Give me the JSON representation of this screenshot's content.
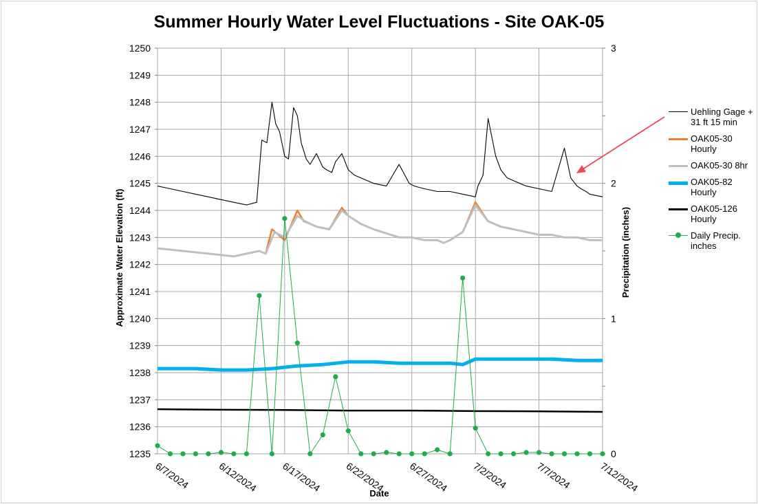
{
  "chart_data": {
    "type": "line",
    "title": "Summer Hourly Water Level Fluctuations - Site OAK-05",
    "xlabel": "Date",
    "ylabel": "Approximate  Water  Elevation (ft)",
    "y2label": "Precipitation (inches)",
    "xlim": [
      0,
      35
    ],
    "ylim": [
      1235,
      1250
    ],
    "y2lim": [
      0,
      3
    ],
    "x_tick_labels": [
      "6/7/2024",
      "6/12/2024",
      "6/17/2024",
      "6/22/2024",
      "6/27/2024",
      "7/2/2024",
      "7/7/2024",
      "7/12/2024"
    ],
    "y_ticks": [
      1235,
      1236,
      1237,
      1238,
      1239,
      1240,
      1241,
      1242,
      1243,
      1244,
      1245,
      1246,
      1247,
      1248,
      1249,
      1250
    ],
    "y2_ticks": [
      0,
      1,
      2,
      3
    ],
    "grid": true,
    "legend_position": "right",
    "colors": {
      "uehling": "#000000",
      "oak05_30_hourly": "#ed7d31",
      "oak05_30_8hr": "#bfbfbf",
      "oak05_82": "#00b0f0",
      "oak05_126": "#000000",
      "precip": "#1fad4b",
      "arrow": "#e8485a"
    },
    "series": [
      {
        "name": "Uehling Gage + 31 ft 15 min",
        "axis": "left",
        "x": [
          0,
          1,
          2,
          3,
          4,
          5,
          6,
          7,
          7.8,
          8.2,
          8.6,
          9.0,
          9.3,
          9.6,
          10.0,
          10.3,
          10.7,
          11.0,
          11.3,
          11.7,
          12.0,
          12.5,
          13.0,
          13.3,
          13.7,
          14.0,
          14.5,
          15.0,
          15.5,
          16.0,
          16.5,
          17.0,
          18,
          19,
          19.8,
          20.2,
          20.6,
          21,
          22,
          23,
          24,
          25,
          25.2,
          25.6,
          26,
          26.6,
          27,
          27.5,
          28,
          28.5,
          29,
          30,
          31,
          32,
          32.5,
          33,
          33.3,
          33.7,
          34,
          35
        ],
        "y": [
          1244.9,
          1244.8,
          1244.7,
          1244.6,
          1244.5,
          1244.4,
          1244.3,
          1244.2,
          1244.3,
          1246.6,
          1246.5,
          1248.0,
          1247.2,
          1246.9,
          1246.0,
          1245.9,
          1247.8,
          1247.5,
          1246.5,
          1245.9,
          1245.7,
          1246.1,
          1245.6,
          1245.5,
          1245.4,
          1245.8,
          1246.1,
          1245.5,
          1245.3,
          1245.2,
          1245.1,
          1245.0,
          1244.9,
          1245.7,
          1245.0,
          1244.9,
          1244.85,
          1244.8,
          1244.7,
          1244.7,
          1244.6,
          1244.5,
          1244.9,
          1245.3,
          1247.4,
          1246.0,
          1245.5,
          1245.2,
          1245.1,
          1245.0,
          1244.9,
          1244.8,
          1244.7,
          1246.3,
          1245.2,
          1244.9,
          1244.8,
          1244.7,
          1244.6,
          1244.5
        ]
      },
      {
        "name": "OAK05-30 Hourly",
        "axis": "left",
        "x": [
          0,
          2,
          4,
          6,
          7,
          8,
          8.5,
          9.0,
          10.0,
          11.0,
          11.5,
          12.5,
          13.5,
          14.5,
          15.0,
          16.0,
          17.0,
          19.0,
          20.0,
          21.0,
          22.0,
          22.5,
          23.0,
          24.0,
          25.0,
          26.0,
          27.0,
          28.0,
          29.0,
          30.0,
          31.0,
          32.0,
          33.0,
          34.0,
          35.0
        ],
        "y": [
          1242.6,
          1242.5,
          1242.4,
          1242.3,
          1242.4,
          1242.5,
          1242.4,
          1243.3,
          1242.9,
          1244.0,
          1243.6,
          1243.4,
          1243.3,
          1244.1,
          1243.8,
          1243.5,
          1243.3,
          1243.0,
          1243.0,
          1242.9,
          1242.9,
          1242.8,
          1242.9,
          1243.2,
          1244.3,
          1243.6,
          1243.4,
          1243.3,
          1243.2,
          1243.1,
          1243.1,
          1243.0,
          1243.0,
          1242.9,
          1242.9
        ]
      },
      {
        "name": "OAK05-30 8hr",
        "axis": "left",
        "x": [
          0,
          2,
          4,
          6,
          7,
          8,
          8.5,
          9.2,
          10.0,
          11.0,
          11.6,
          12.5,
          13.5,
          14.5,
          15.0,
          16.0,
          17.0,
          19.0,
          20.0,
          21.0,
          22.0,
          22.5,
          23.0,
          24.0,
          25.0,
          26.0,
          27.0,
          28.0,
          29.0,
          30.0,
          31.0,
          32.0,
          33.0,
          34.0,
          35.0
        ],
        "y": [
          1242.6,
          1242.5,
          1242.4,
          1242.3,
          1242.4,
          1242.5,
          1242.4,
          1243.2,
          1243.0,
          1243.8,
          1243.6,
          1243.4,
          1243.3,
          1244.0,
          1243.8,
          1243.5,
          1243.3,
          1243.0,
          1243.0,
          1242.9,
          1242.9,
          1242.8,
          1242.9,
          1243.2,
          1244.2,
          1243.6,
          1243.4,
          1243.3,
          1243.2,
          1243.1,
          1243.1,
          1243.0,
          1243.0,
          1242.9,
          1242.9
        ]
      },
      {
        "name": "OAK05-82 Hourly",
        "axis": "left",
        "x": [
          0,
          3,
          5,
          7,
          9,
          11,
          13,
          15,
          17,
          19,
          21,
          23,
          24,
          25,
          27,
          29,
          31,
          33,
          35
        ],
        "y": [
          1238.15,
          1238.15,
          1238.1,
          1238.1,
          1238.15,
          1238.25,
          1238.3,
          1238.4,
          1238.4,
          1238.35,
          1238.35,
          1238.35,
          1238.3,
          1238.5,
          1238.5,
          1238.5,
          1238.5,
          1238.45,
          1238.45
        ]
      },
      {
        "name": "OAK05-126 Hourly",
        "axis": "left",
        "x": [
          0,
          5,
          10,
          15,
          20,
          25,
          30,
          35
        ],
        "y": [
          1236.65,
          1236.63,
          1236.62,
          1236.6,
          1236.6,
          1236.58,
          1236.57,
          1236.55
        ]
      },
      {
        "name": "Daily Precip. inches",
        "axis": "right",
        "markers": true,
        "x": [
          0,
          1,
          2,
          3,
          4,
          5,
          6,
          7,
          8,
          9,
          10,
          11,
          12,
          13,
          14,
          15,
          16,
          17,
          18,
          19,
          20,
          21,
          22,
          23,
          24,
          25,
          26,
          27,
          28,
          29,
          30,
          31,
          32,
          33,
          34,
          35
        ],
        "y": [
          0.06,
          0,
          0,
          0,
          0,
          0.01,
          0,
          0,
          1.17,
          0,
          1.74,
          0.82,
          0,
          0.14,
          0.57,
          0.17,
          0,
          0,
          0.01,
          0,
          0,
          0,
          0.03,
          0,
          1.3,
          0.19,
          0,
          0,
          0,
          0.01,
          0.01,
          0,
          0,
          0,
          0,
          0
        ]
      }
    ]
  },
  "legend": [
    {
      "label": "Uehling Gage + 31 ft 15 min",
      "color": "#000000",
      "width": 1,
      "type": "line"
    },
    {
      "label": "OAK05-30 Hourly",
      "color": "#ed7d31",
      "width": 3,
      "type": "line"
    },
    {
      "label": "OAK05-30 8hr",
      "color": "#bfbfbf",
      "width": 3,
      "type": "line"
    },
    {
      "label": "OAK05-82 Hourly",
      "color": "#00b0f0",
      "width": 5,
      "type": "line"
    },
    {
      "label": "OAK05-126 Hourly",
      "color": "#000000",
      "width": 3,
      "type": "line"
    },
    {
      "label": " Daily Precip. inches",
      "color": "#1fad4b",
      "width": 1,
      "type": "marker-line"
    }
  ]
}
